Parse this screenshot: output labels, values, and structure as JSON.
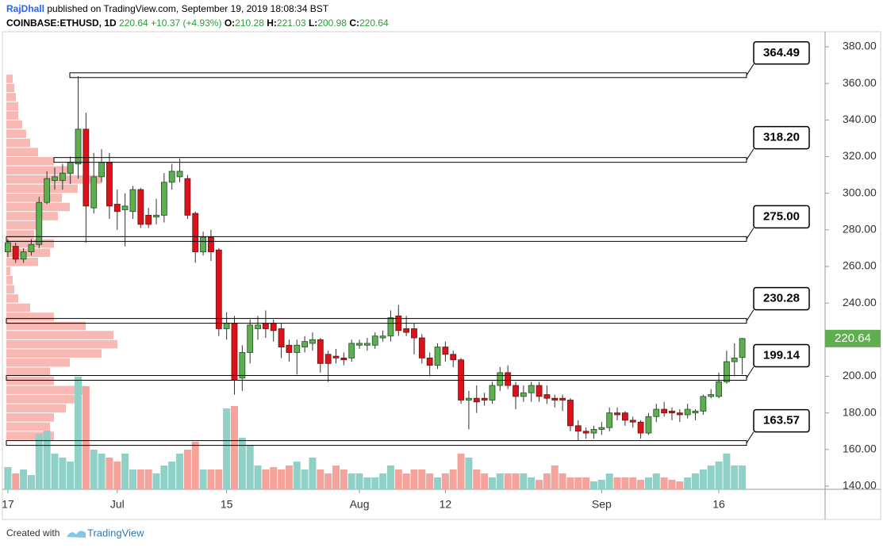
{
  "header": {
    "author": "RajDhall",
    "published": "published on TradingView.com, September 19, 2019 18:08:34 BST",
    "symbol": "COINBASE:ETHUSD, 1D",
    "last": "220.64",
    "change": "+10.37 (+4.93%)",
    "ohlc": [
      {
        "key": "O:",
        "value": "210.28"
      },
      {
        "key": "H:",
        "value": "221.03"
      },
      {
        "key": "L:",
        "value": "200.98"
      },
      {
        "key": "C:",
        "value": "220.64"
      }
    ]
  },
  "footer": {
    "text": "Created with",
    "brand": "TradingView"
  },
  "chart_data": {
    "type": "candlestick",
    "up_color": "#5fae4f",
    "down_color": "#e0101a",
    "up_volume_color": "#8fd1c6",
    "down_volume_color": "#f5a39b",
    "profile_color": "#f5a09a",
    "grid": false,
    "ylim": [
      140,
      380
    ],
    "yticks": [
      {
        "value": 140,
        "label": "140.00"
      },
      {
        "value": 160,
        "label": "160.00"
      },
      {
        "value": 180,
        "label": "180.00"
      },
      {
        "value": 200,
        "label": "200.00"
      },
      {
        "value": 220,
        "label": "220.00"
      },
      {
        "value": 240,
        "label": "240.00"
      },
      {
        "value": 260,
        "label": "260.00"
      },
      {
        "value": 280,
        "label": "280.00"
      },
      {
        "value": 300,
        "label": "300.00"
      },
      {
        "value": 320,
        "label": "320.00"
      },
      {
        "value": 340,
        "label": "340.00"
      },
      {
        "value": 360,
        "label": "360.00"
      },
      {
        "value": 380,
        "label": "380.00"
      }
    ],
    "xlim": [
      -0.7,
      104.6
    ],
    "xticks": [
      {
        "value": 0,
        "label": "17"
      },
      {
        "value": 14,
        "label": "Jul"
      },
      {
        "value": 28,
        "label": "15"
      },
      {
        "value": 45,
        "label": "Aug"
      },
      {
        "value": 56,
        "label": "12"
      },
      {
        "value": 76,
        "label": "Sep"
      },
      {
        "value": 91,
        "label": "16"
      }
    ],
    "candles": {
      "open": [
        268,
        271,
        264,
        268,
        272,
        295,
        307,
        307,
        311,
        316,
        335,
        292,
        309,
        317,
        294,
        291,
        290,
        302,
        288,
        287,
        288,
        306,
        309,
        308,
        289,
        268,
        276,
        269,
        226,
        229,
        199,
        213,
        226,
        229,
        229,
        226,
        217,
        213,
        216,
        218,
        220,
        212,
        211,
        210,
        210,
        217,
        217,
        217,
        221,
        222,
        233,
        226,
        226,
        221,
        210,
        206,
        216,
        212,
        209,
        187,
        188,
        188,
        187,
        195,
        202,
        195,
        189,
        191,
        195,
        190,
        188,
        188,
        187,
        173,
        170,
        169,
        171,
        172,
        180,
        180,
        176,
        175,
        169,
        178,
        182,
        181,
        180,
        179,
        180,
        181,
        189,
        189,
        197,
        208,
        210.28
      ],
      "high": [
        275,
        273,
        270,
        275,
        298,
        312,
        314,
        316,
        320,
        364,
        344,
        322,
        324,
        322,
        302,
        300,
        304,
        303,
        292,
        297,
        311,
        316,
        319,
        310,
        290,
        279,
        280,
        270,
        235,
        233,
        217,
        231,
        233,
        236,
        231,
        229,
        220,
        220,
        222,
        224,
        221,
        214,
        215,
        213,
        220,
        220,
        221,
        224,
        225,
        236,
        239,
        233,
        229,
        223,
        213,
        218,
        219,
        214,
        210,
        192,
        195,
        191,
        197,
        205,
        206,
        197,
        195,
        197,
        197,
        195,
        190,
        190,
        188,
        176,
        172,
        173,
        175,
        183,
        183,
        181,
        178,
        176,
        180,
        185,
        186,
        183,
        182,
        185,
        182,
        190,
        193,
        202,
        214,
        218,
        221.03
      ],
      "low": [
        265,
        262,
        262,
        266,
        270,
        294,
        302,
        302,
        305,
        308,
        273,
        289,
        306,
        286,
        280,
        271,
        286,
        281,
        281,
        283,
        284,
        302,
        306,
        286,
        262,
        266,
        263,
        222,
        220,
        190,
        192,
        207,
        220,
        221,
        219,
        210,
        208,
        201,
        213,
        214,
        202,
        197,
        207,
        206,
        208,
        215,
        214,
        215,
        219,
        219,
        222,
        222,
        212,
        207,
        200,
        204,
        208,
        205,
        185,
        171,
        180,
        184,
        185,
        192,
        193,
        182,
        186,
        186,
        186,
        185,
        183,
        181,
        170,
        165,
        166,
        166,
        168,
        170,
        176,
        173,
        172,
        166,
        168,
        175,
        178,
        176,
        175,
        177,
        176,
        179,
        188,
        188,
        196,
        200,
        200.98
      ],
      "close": [
        273,
        264,
        268,
        272,
        295,
        308,
        309,
        311,
        317,
        335,
        293,
        309,
        317,
        293,
        290,
        293,
        302,
        283,
        283,
        288,
        306,
        312,
        312,
        288,
        268,
        276,
        268,
        226,
        229,
        198,
        213,
        228,
        228,
        226,
        225,
        216,
        213,
        217,
        219,
        220,
        207,
        207,
        210,
        209,
        218,
        218,
        218,
        222,
        222,
        232,
        225,
        224,
        221,
        210,
        206,
        216,
        212,
        209,
        187,
        188,
        186,
        187,
        195,
        202,
        195,
        189,
        191,
        195,
        189,
        188,
        187,
        187,
        173,
        170,
        169,
        171,
        172,
        180,
        179,
        176,
        175,
        169,
        178,
        182,
        180,
        180,
        179,
        182,
        181,
        189,
        190,
        197,
        208,
        210,
        220.64
      ],
      "volume": [
        28,
        20,
        25,
        18,
        70,
        74,
        45,
        40,
        35,
        142,
        130,
        50,
        45,
        40,
        35,
        45,
        25,
        25,
        25,
        20,
        30,
        35,
        45,
        50,
        60,
        25,
        25,
        25,
        102,
        105,
        65,
        55,
        30,
        25,
        28,
        25,
        30,
        35,
        25,
        40,
        25,
        20,
        30,
        25,
        20,
        20,
        15,
        15,
        20,
        30,
        25,
        20,
        25,
        25,
        20,
        15,
        20,
        25,
        45,
        40,
        25,
        20,
        15,
        20,
        20,
        20,
        20,
        15,
        12,
        20,
        30,
        20,
        15,
        15,
        15,
        10,
        12,
        20,
        15,
        15,
        15,
        12,
        15,
        20,
        15,
        12,
        10,
        15,
        20,
        25,
        30,
        35,
        45,
        30,
        30
      ]
    },
    "volume_profile": {
      "bins": [
        165,
        170,
        175,
        180,
        185,
        190,
        195,
        200,
        205,
        210,
        215,
        220,
        225,
        230,
        235,
        240,
        245,
        250,
        255,
        260,
        265,
        270,
        275,
        280,
        285,
        290,
        295,
        300,
        305,
        310,
        315,
        320,
        325,
        330,
        335,
        340,
        345,
        350,
        355,
        360,
        365
      ],
      "values": [
        60,
        55,
        60,
        75,
        95,
        100,
        60,
        55,
        80,
        120,
        140,
        135,
        100,
        60,
        30,
        15,
        10,
        8,
        5,
        40,
        55,
        60,
        35,
        45,
        65,
        80,
        70,
        90,
        120,
        85,
        60,
        40,
        30,
        25,
        20,
        15,
        15,
        12,
        10,
        8
      ]
    },
    "levels": [
      {
        "value": 364.49,
        "label": "364.49"
      },
      {
        "value": 318.2,
        "label": "318.20"
      },
      {
        "value": 275,
        "label": "275.00"
      },
      {
        "value": 230.28,
        "label": "230.28"
      },
      {
        "value": 199.14,
        "label": "199.14"
      },
      {
        "value": 163.57,
        "label": "163.57"
      }
    ]
  }
}
